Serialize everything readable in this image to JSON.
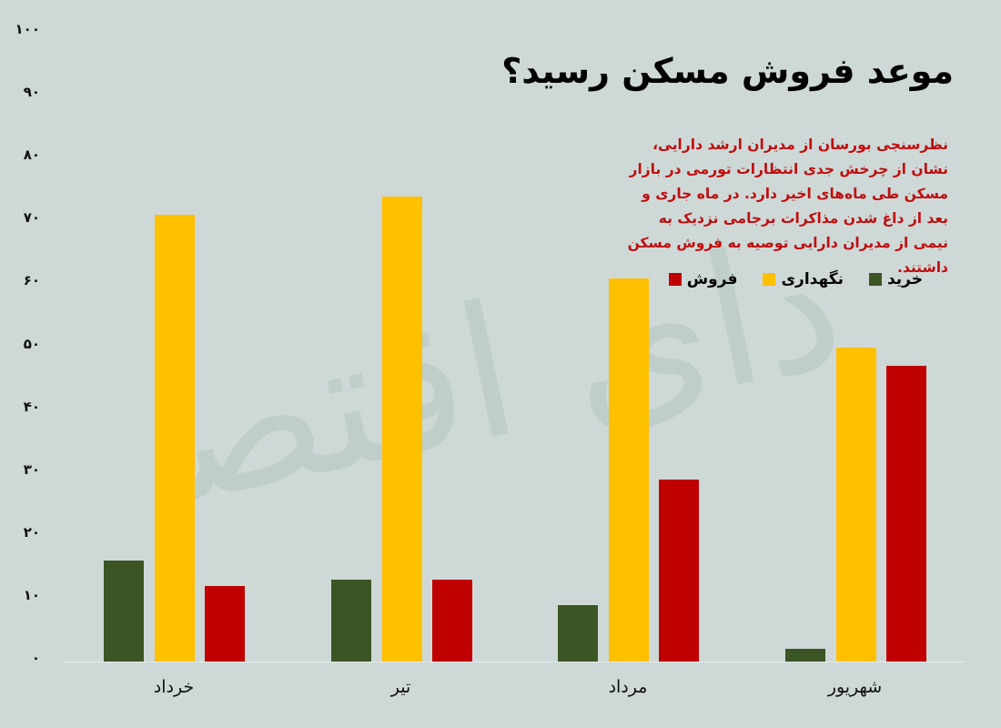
{
  "header": {
    "title": "موعد فروش مسکن رسید؟",
    "description": "نظرسنجی بورسان از مدیران ارشد دارایی، نشان از چرخش جدی انتظارات تورمی در بازار مسکن طی ماه‌های اخیر دارد. در ماه جاری و بعد از داغ شدن مذاکرات برجامی نزدیک به نیمی از مدیران دارایی توصیه به فروش مسکن داشتند."
  },
  "legend": [
    {
      "label": "فروش",
      "color": "#c00000"
    },
    {
      "label": "نگهداری",
      "color": "#ffc000"
    },
    {
      "label": "خرید",
      "color": "#3b5524"
    }
  ],
  "y_ticks": [
    "۰",
    "۱۰",
    "۲۰",
    "۳۰",
    "۴۰",
    "۵۰",
    "۶۰",
    "۷۰",
    "۸۰",
    "۹۰",
    "۱۰۰"
  ],
  "watermark": "فردای اقتصاد",
  "colors": {
    "background": "#ced8d7",
    "buy": "#3b5524",
    "hold": "#ffc000",
    "sell": "#c00000",
    "description": "#bf0d0d"
  },
  "chart_data": {
    "type": "bar",
    "title": "موعد فروش مسکن رسید؟",
    "categories": [
      "خرداد",
      "تیر",
      "مرداد",
      "شهریور"
    ],
    "series": [
      {
        "name": "خرید",
        "color": "#3b5524",
        "values": [
          16,
          13,
          9,
          2
        ]
      },
      {
        "name": "نگهداری",
        "color": "#ffc000",
        "values": [
          71,
          74,
          61,
          50
        ]
      },
      {
        "name": "فروش",
        "color": "#c00000",
        "values": [
          12,
          13,
          29,
          47
        ]
      }
    ],
    "xlabel": "",
    "ylabel": "",
    "ylim": [
      0,
      100
    ],
    "yticks": [
      0,
      10,
      20,
      30,
      40,
      50,
      60,
      70,
      80,
      90,
      100
    ],
    "grid": false,
    "legend_position": "top-right"
  }
}
